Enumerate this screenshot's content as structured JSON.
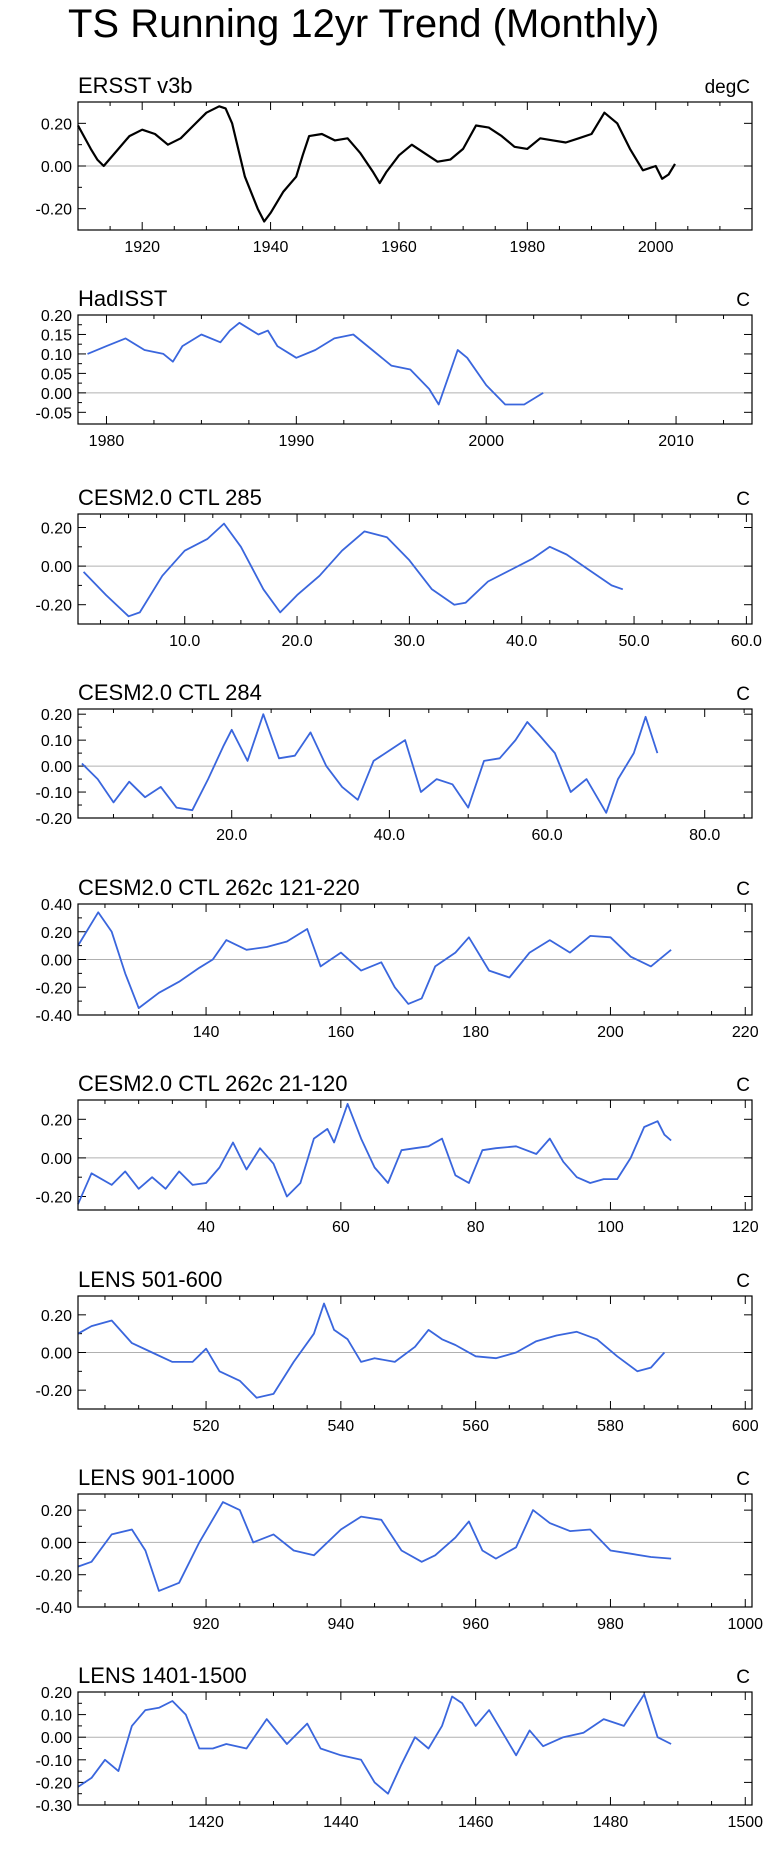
{
  "title": "TS Running 12yr Trend (Monthly)",
  "colors": {
    "observed": "#000000",
    "model": "#3a66dd",
    "zero_line": "#b0b0b0",
    "axis": "#000000"
  },
  "chart_data": [
    {
      "type": "line",
      "title": "ERSST v3b",
      "units": "degC",
      "color": "#000000",
      "xlim": [
        1910,
        2015
      ],
      "ylim": [
        -0.3,
        0.3
      ],
      "xticks": [
        1920,
        1940,
        1960,
        1980,
        2000
      ],
      "xtick_labels": [
        "1920",
        "1940",
        "1960",
        "1980",
        "2000"
      ],
      "yticks": [
        -0.2,
        0.0,
        0.2
      ],
      "ytick_labels": [
        "-0.20",
        "0.00",
        "0.20"
      ],
      "x": [
        1910,
        1912,
        1913,
        1914,
        1916,
        1918,
        1920,
        1922,
        1924,
        1926,
        1928,
        1930,
        1932,
        1933,
        1934,
        1936,
        1938,
        1939,
        1940,
        1942,
        1944,
        1945,
        1946,
        1948,
        1950,
        1952,
        1954,
        1956,
        1957,
        1958,
        1960,
        1962,
        1964,
        1966,
        1968,
        1970,
        1972,
        1974,
        1976,
        1978,
        1980,
        1982,
        1984,
        1986,
        1988,
        1990,
        1992,
        1994,
        1996,
        1998,
        2000,
        2001,
        2002,
        2003
      ],
      "values": [
        0.19,
        0.08,
        0.03,
        0.0,
        0.07,
        0.14,
        0.17,
        0.15,
        0.1,
        0.13,
        0.19,
        0.25,
        0.28,
        0.27,
        0.2,
        -0.05,
        -0.2,
        -0.26,
        -0.22,
        -0.12,
        -0.05,
        0.05,
        0.14,
        0.15,
        0.12,
        0.13,
        0.06,
        -0.03,
        -0.08,
        -0.03,
        0.05,
        0.1,
        0.06,
        0.02,
        0.03,
        0.08,
        0.19,
        0.18,
        0.14,
        0.09,
        0.08,
        0.13,
        0.12,
        0.11,
        0.13,
        0.15,
        0.25,
        0.2,
        0.08,
        -0.02,
        0.0,
        -0.06,
        -0.04,
        0.01
      ]
    },
    {
      "type": "line",
      "title": "HadISST",
      "units": "C",
      "color": "#3a66dd",
      "xlim": [
        1978.5,
        2014
      ],
      "ylim": [
        -0.08,
        0.2
      ],
      "xticks": [
        1980,
        1990,
        2000,
        2010
      ],
      "xtick_labels": [
        "1980",
        "1990",
        "2000",
        "2010"
      ],
      "yticks": [
        -0.05,
        0.0,
        0.05,
        0.1,
        0.15,
        0.2
      ],
      "ytick_labels": [
        "-0.05",
        "0.00",
        "0.05",
        "0.10",
        "0.15",
        "0.20"
      ],
      "x": [
        1979,
        1980,
        1981,
        1982,
        1983,
        1983.5,
        1984,
        1985,
        1986,
        1986.5,
        1987,
        1988,
        1988.5,
        1989,
        1990,
        1991,
        1992,
        1993,
        1994,
        1995,
        1996,
        1997,
        1997.5,
        1998,
        1998.5,
        1999,
        2000,
        2001,
        2002,
        2003
      ],
      "values": [
        0.1,
        0.12,
        0.14,
        0.11,
        0.1,
        0.08,
        0.12,
        0.15,
        0.13,
        0.16,
        0.18,
        0.15,
        0.16,
        0.12,
        0.09,
        0.11,
        0.14,
        0.15,
        0.11,
        0.07,
        0.06,
        0.01,
        -0.03,
        0.04,
        0.11,
        0.09,
        0.02,
        -0.03,
        -0.03,
        0.0
      ]
    },
    {
      "type": "line",
      "title": "CESM2.0 CTL 285",
      "units": "C",
      "color": "#3a66dd",
      "xlim": [
        0.5,
        60.5
      ],
      "ylim": [
        -0.3,
        0.27
      ],
      "xticks": [
        10,
        20,
        30,
        40,
        50,
        60
      ],
      "xtick_labels": [
        "10.0",
        "20.0",
        "30.0",
        "40.0",
        "50.0",
        "60.0"
      ],
      "yticks": [
        -0.2,
        0.0,
        0.2
      ],
      "ytick_labels": [
        "-0.20",
        "0.00",
        "0.20"
      ],
      "x": [
        1,
        3,
        5,
        6,
        8,
        10,
        12,
        13.5,
        15,
        17,
        18.5,
        20,
        22,
        24,
        26,
        28,
        30,
        32,
        34,
        35,
        37,
        39,
        41,
        42.5,
        44,
        46,
        48,
        49
      ],
      "values": [
        -0.03,
        -0.15,
        -0.26,
        -0.24,
        -0.05,
        0.08,
        0.14,
        0.22,
        0.1,
        -0.12,
        -0.24,
        -0.15,
        -0.05,
        0.08,
        0.18,
        0.15,
        0.03,
        -0.12,
        -0.2,
        -0.19,
        -0.08,
        -0.02,
        0.04,
        0.1,
        0.06,
        -0.02,
        -0.1,
        -0.12
      ]
    },
    {
      "type": "line",
      "title": "CESM2.0 CTL 284",
      "units": "C",
      "color": "#3a66dd",
      "xlim": [
        0.5,
        86
      ],
      "ylim": [
        -0.2,
        0.22
      ],
      "xticks": [
        20,
        40,
        60,
        80
      ],
      "xtick_labels": [
        "20.0",
        "40.0",
        "60.0",
        "80.0"
      ],
      "yticks": [
        -0.2,
        -0.1,
        0.0,
        0.1,
        0.2
      ],
      "ytick_labels": [
        "-0.20",
        "-0.10",
        "0.00",
        "0.10",
        "0.20"
      ],
      "x": [
        1,
        3,
        5,
        7,
        9,
        11,
        13,
        15,
        17,
        19,
        20,
        22,
        24,
        26,
        28,
        30,
        32,
        34,
        36,
        38,
        40,
        42,
        44,
        46,
        48,
        50,
        52,
        54,
        56,
        57.5,
        59,
        61,
        63,
        65,
        67.5,
        69,
        71,
        72.5,
        74
      ],
      "values": [
        0.01,
        -0.05,
        -0.14,
        -0.06,
        -0.12,
        -0.08,
        -0.16,
        -0.17,
        -0.05,
        0.08,
        0.14,
        0.02,
        0.2,
        0.03,
        0.04,
        0.13,
        0.0,
        -0.08,
        -0.13,
        0.02,
        0.06,
        0.1,
        -0.1,
        -0.05,
        -0.07,
        -0.16,
        0.02,
        0.03,
        0.1,
        0.17,
        0.12,
        0.05,
        -0.1,
        -0.05,
        -0.18,
        -0.05,
        0.05,
        0.19,
        0.05
      ]
    },
    {
      "type": "line",
      "title": "CESM2.0 CTL 262c 121-220",
      "units": "C",
      "color": "#3a66dd",
      "xlim": [
        121,
        221
      ],
      "ylim": [
        -0.4,
        0.4
      ],
      "xticks": [
        140,
        160,
        180,
        200,
        220
      ],
      "xtick_labels": [
        "140",
        "160",
        "180",
        "200",
        "220"
      ],
      "yticks": [
        -0.4,
        -0.2,
        0.0,
        0.2,
        0.4
      ],
      "ytick_labels": [
        "-0.40",
        "-0.20",
        "0.00",
        "0.20",
        "0.40"
      ],
      "x": [
        121,
        124,
        126,
        128,
        130,
        133,
        136,
        139,
        141,
        143,
        146,
        149,
        152,
        155,
        157,
        160,
        163,
        166,
        168,
        170,
        172,
        174,
        177,
        179,
        182,
        185,
        188,
        191,
        194,
        197,
        200,
        203,
        206,
        209
      ],
      "values": [
        0.1,
        0.34,
        0.2,
        -0.1,
        -0.35,
        -0.24,
        -0.16,
        -0.06,
        0.0,
        0.14,
        0.07,
        0.09,
        0.13,
        0.22,
        -0.05,
        0.05,
        -0.08,
        -0.02,
        -0.2,
        -0.32,
        -0.28,
        -0.05,
        0.05,
        0.16,
        -0.08,
        -0.13,
        0.05,
        0.14,
        0.05,
        0.17,
        0.16,
        0.02,
        -0.05,
        0.07
      ]
    },
    {
      "type": "line",
      "title": "CESM2.0 CTL 262c 21-120",
      "units": "C",
      "color": "#3a66dd",
      "xlim": [
        21,
        121
      ],
      "ylim": [
        -0.27,
        0.3
      ],
      "xticks": [
        40,
        60,
        80,
        100,
        120
      ],
      "xtick_labels": [
        "40",
        "60",
        "80",
        "100",
        "120"
      ],
      "yticks": [
        -0.2,
        0.0,
        0.2
      ],
      "ytick_labels": [
        "-0.20",
        "0.00",
        "0.20"
      ],
      "x": [
        21,
        23,
        26,
        28,
        30,
        32,
        34,
        36,
        38,
        40,
        42,
        44,
        46,
        48,
        50,
        52,
        54,
        56,
        58,
        59,
        61,
        63,
        65,
        67,
        69,
        71,
        73,
        75,
        77,
        79,
        81,
        83,
        86,
        89,
        91,
        93,
        95,
        97,
        99,
        101,
        103,
        105,
        107,
        108,
        109
      ],
      "values": [
        -0.24,
        -0.08,
        -0.14,
        -0.07,
        -0.16,
        -0.1,
        -0.16,
        -0.07,
        -0.14,
        -0.13,
        -0.05,
        0.08,
        -0.06,
        0.05,
        -0.03,
        -0.2,
        -0.13,
        0.1,
        0.15,
        0.08,
        0.28,
        0.1,
        -0.05,
        -0.13,
        0.04,
        0.05,
        0.06,
        0.1,
        -0.09,
        -0.13,
        0.04,
        0.05,
        0.06,
        0.02,
        0.1,
        -0.02,
        -0.1,
        -0.13,
        -0.11,
        -0.11,
        0.0,
        0.16,
        0.19,
        0.12,
        0.09
      ]
    },
    {
      "type": "line",
      "title": "LENS 501-600",
      "units": "C",
      "color": "#3a66dd",
      "xlim": [
        501,
        601
      ],
      "ylim": [
        -0.3,
        0.3
      ],
      "xticks": [
        520,
        540,
        560,
        580,
        600
      ],
      "xtick_labels": [
        "520",
        "540",
        "560",
        "580",
        "600"
      ],
      "yticks": [
        -0.2,
        0.0,
        0.2
      ],
      "ytick_labels": [
        "-0.20",
        "0.00",
        "0.20"
      ],
      "x": [
        501,
        503,
        506,
        509,
        512,
        515,
        518,
        520,
        522,
        525,
        527.5,
        530,
        533,
        536,
        537.5,
        539,
        541,
        543,
        545,
        548,
        551,
        553,
        555,
        557,
        560,
        563,
        566,
        569,
        572,
        575,
        578,
        581,
        584,
        586,
        588
      ],
      "values": [
        0.1,
        0.14,
        0.17,
        0.05,
        0.0,
        -0.05,
        -0.05,
        0.02,
        -0.1,
        -0.15,
        -0.24,
        -0.22,
        -0.05,
        0.1,
        0.26,
        0.12,
        0.07,
        -0.05,
        -0.03,
        -0.05,
        0.03,
        0.12,
        0.07,
        0.04,
        -0.02,
        -0.03,
        0.0,
        0.06,
        0.09,
        0.11,
        0.07,
        -0.02,
        -0.1,
        -0.08,
        0.0
      ]
    },
    {
      "type": "line",
      "title": "LENS 901-1000",
      "units": "C",
      "color": "#3a66dd",
      "xlim": [
        901,
        1001
      ],
      "ylim": [
        -0.4,
        0.3
      ],
      "xticks": [
        920,
        940,
        960,
        980,
        1000
      ],
      "xtick_labels": [
        "920",
        "940",
        "960",
        "980",
        "1000"
      ],
      "yticks": [
        -0.4,
        -0.2,
        0.0,
        0.2
      ],
      "ytick_labels": [
        "-0.40",
        "-0.20",
        "0.00",
        "0.20"
      ],
      "x": [
        901,
        903,
        906,
        909,
        911,
        913,
        916,
        919,
        922.5,
        925,
        927,
        930,
        933,
        936,
        940,
        943,
        946,
        949,
        952,
        954,
        957,
        959,
        961,
        963,
        966,
        968.5,
        971,
        974,
        977,
        980,
        983,
        986,
        989
      ],
      "values": [
        -0.15,
        -0.12,
        0.05,
        0.08,
        -0.05,
        -0.3,
        -0.25,
        0.0,
        0.25,
        0.2,
        0.0,
        0.05,
        -0.05,
        -0.08,
        0.08,
        0.16,
        0.14,
        -0.05,
        -0.12,
        -0.08,
        0.03,
        0.13,
        -0.05,
        -0.1,
        -0.03,
        0.2,
        0.12,
        0.07,
        0.08,
        -0.05,
        -0.07,
        -0.09,
        -0.1
      ]
    },
    {
      "type": "line",
      "title": "LENS 1401-1500",
      "units": "C",
      "color": "#3a66dd",
      "xlim": [
        1401,
        1501
      ],
      "ylim": [
        -0.3,
        0.2
      ],
      "xticks": [
        1420,
        1440,
        1460,
        1480,
        1500
      ],
      "xtick_labels": [
        "1420",
        "1440",
        "1460",
        "1480",
        "1500"
      ],
      "yticks": [
        -0.3,
        -0.2,
        -0.1,
        0.0,
        0.1,
        0.2
      ],
      "ytick_labels": [
        "-0.30",
        "-0.20",
        "-0.10",
        "0.00",
        "0.10",
        "0.20"
      ],
      "x": [
        1401,
        1403,
        1405,
        1407,
        1409,
        1411,
        1413,
        1415,
        1417,
        1419,
        1421,
        1423,
        1426,
        1429,
        1432,
        1435,
        1437,
        1440,
        1443,
        1445,
        1447,
        1449,
        1451,
        1453,
        1455,
        1456.5,
        1458,
        1460,
        1462,
        1464,
        1466,
        1468,
        1470,
        1473,
        1476,
        1479,
        1482,
        1485,
        1487,
        1489
      ],
      "values": [
        -0.22,
        -0.18,
        -0.1,
        -0.15,
        0.05,
        0.12,
        0.13,
        0.16,
        0.1,
        -0.05,
        -0.05,
        -0.03,
        -0.05,
        0.08,
        -0.03,
        0.06,
        -0.05,
        -0.08,
        -0.1,
        -0.2,
        -0.25,
        -0.12,
        0.0,
        -0.05,
        0.05,
        0.18,
        0.15,
        0.05,
        0.12,
        0.02,
        -0.08,
        0.03,
        -0.04,
        0.0,
        0.02,
        0.08,
        0.05,
        0.19,
        0.0,
        -0.03
      ]
    }
  ]
}
